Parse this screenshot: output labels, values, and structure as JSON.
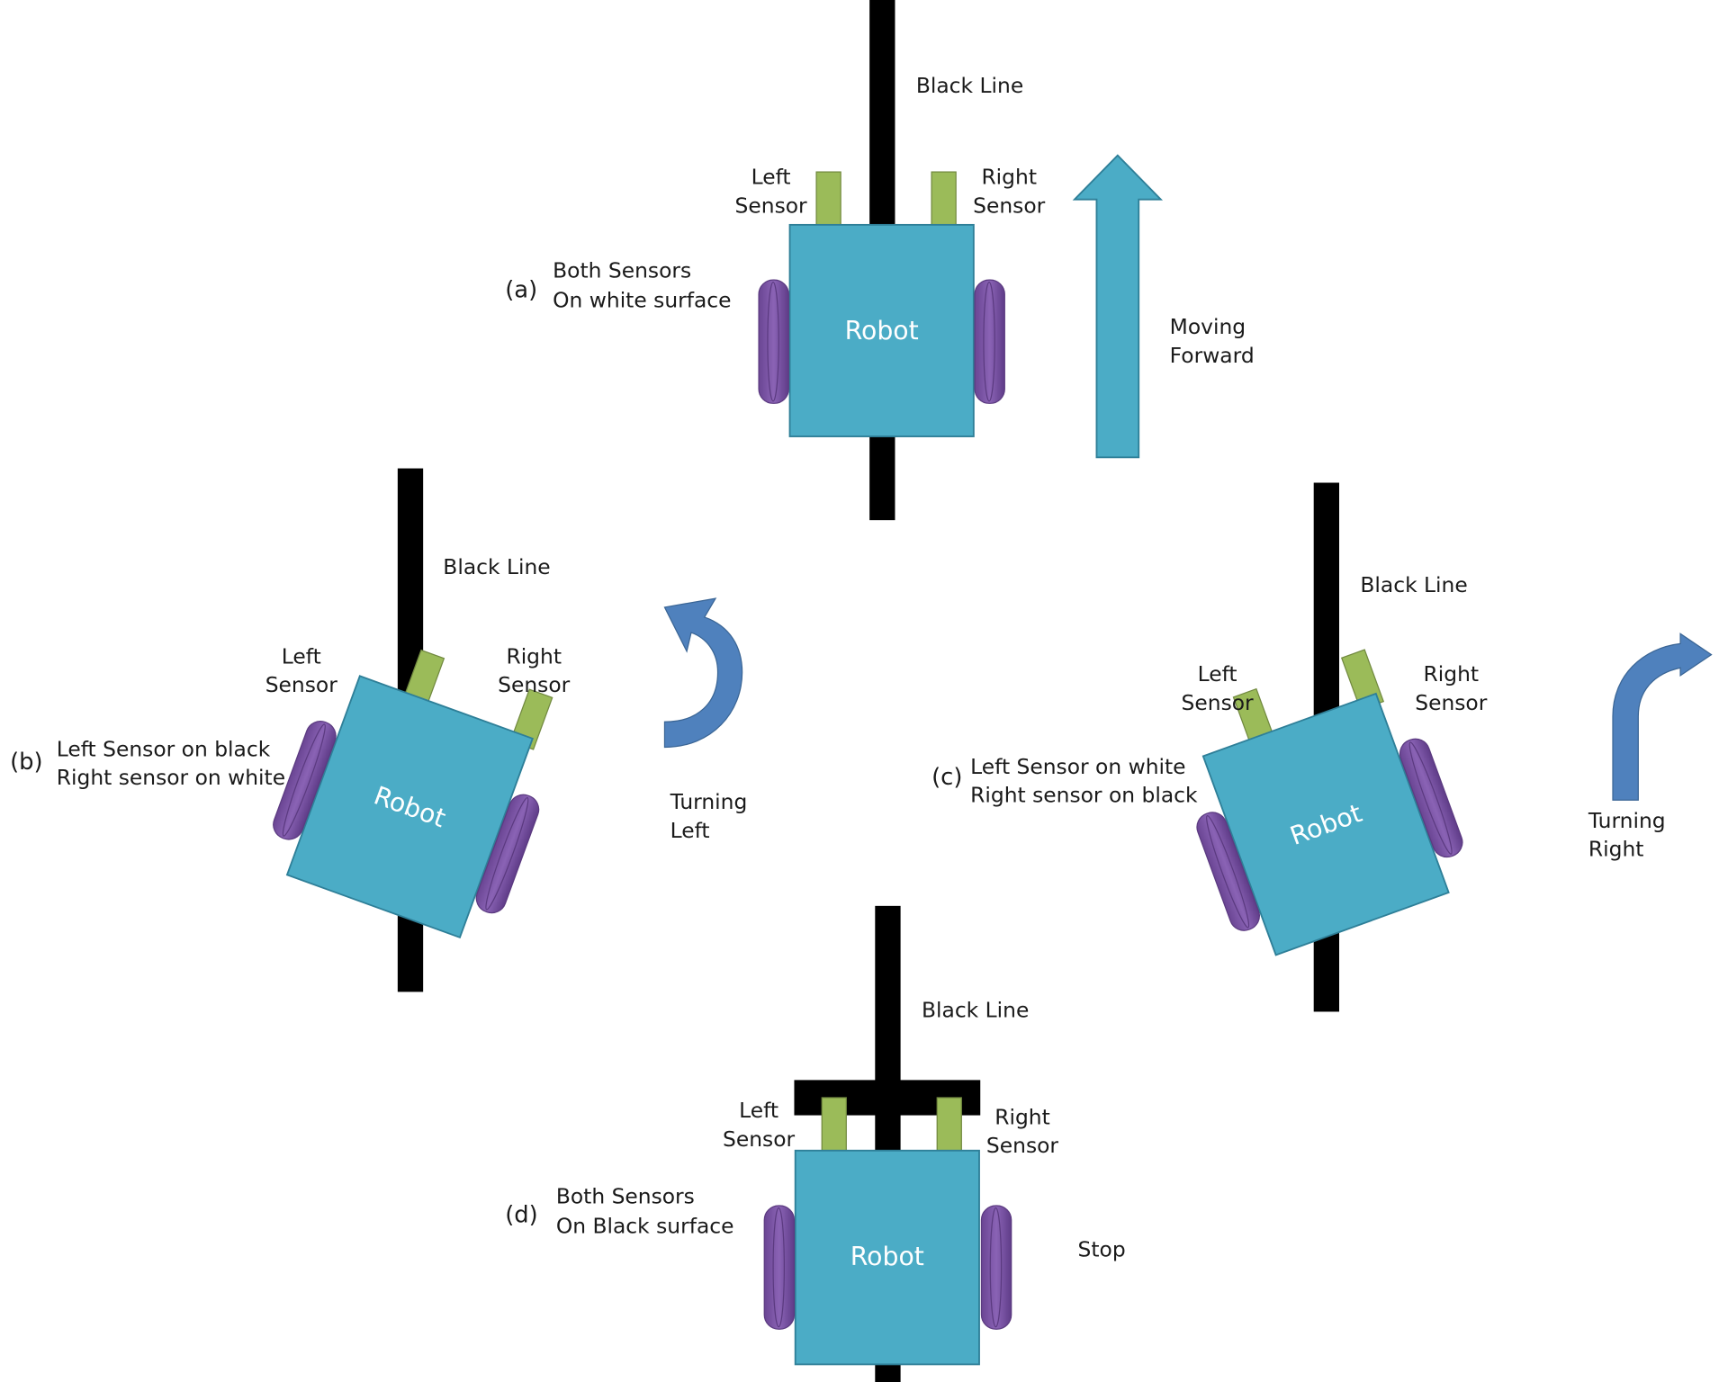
{
  "colors": {
    "line": "#000000",
    "robot_fill": "#4BACC6",
    "robot_stroke": "#2E7F98",
    "sensor_fill": "#9BBB59",
    "sensor_stroke": "#71893F",
    "wheel_fill": "#7E55A8",
    "wheel_stroke": "#5B3A80",
    "arrow_teal": "#4BACC6",
    "arrow_blue": "#4F81BD"
  },
  "panels": {
    "a": {
      "caption": "(a)",
      "description": [
        "Both Sensors",
        "On white surface"
      ],
      "line_label": "Black Line",
      "left_sensor": [
        "Left",
        "Sensor"
      ],
      "right_sensor": [
        "Right",
        "Sensor"
      ],
      "robot": "Robot",
      "action": [
        "Moving",
        "Forward"
      ],
      "arrow_icon": "up-arrow-icon"
    },
    "b": {
      "caption": "(b)",
      "description": [
        "Left Sensor on black",
        "Right sensor on white"
      ],
      "line_label": "Black Line",
      "left_sensor": [
        "Left",
        "Sensor"
      ],
      "right_sensor": [
        "Right",
        "Sensor"
      ],
      "robot": "Robot",
      "action": [
        "Turning",
        "Left"
      ],
      "arrow_icon": "curved-left-arrow-icon"
    },
    "c": {
      "caption": "(c)",
      "description": [
        "Left Sensor on white",
        "Right sensor on black"
      ],
      "line_label": "Black Line",
      "left_sensor": [
        "Left",
        "Sensor"
      ],
      "right_sensor": [
        "Right",
        "Sensor"
      ],
      "robot": "Robot",
      "action": [
        "Turning",
        "Right"
      ],
      "arrow_icon": "curved-right-arrow-icon"
    },
    "d": {
      "caption": "(d)",
      "description": [
        "Both Sensors",
        "On Black surface"
      ],
      "line_label": "Black Line",
      "left_sensor": [
        "Left",
        "Sensor"
      ],
      "right_sensor": [
        "Right",
        "Sensor"
      ],
      "robot": "Robot",
      "action": [
        "Stop"
      ],
      "arrow_icon": ""
    }
  }
}
